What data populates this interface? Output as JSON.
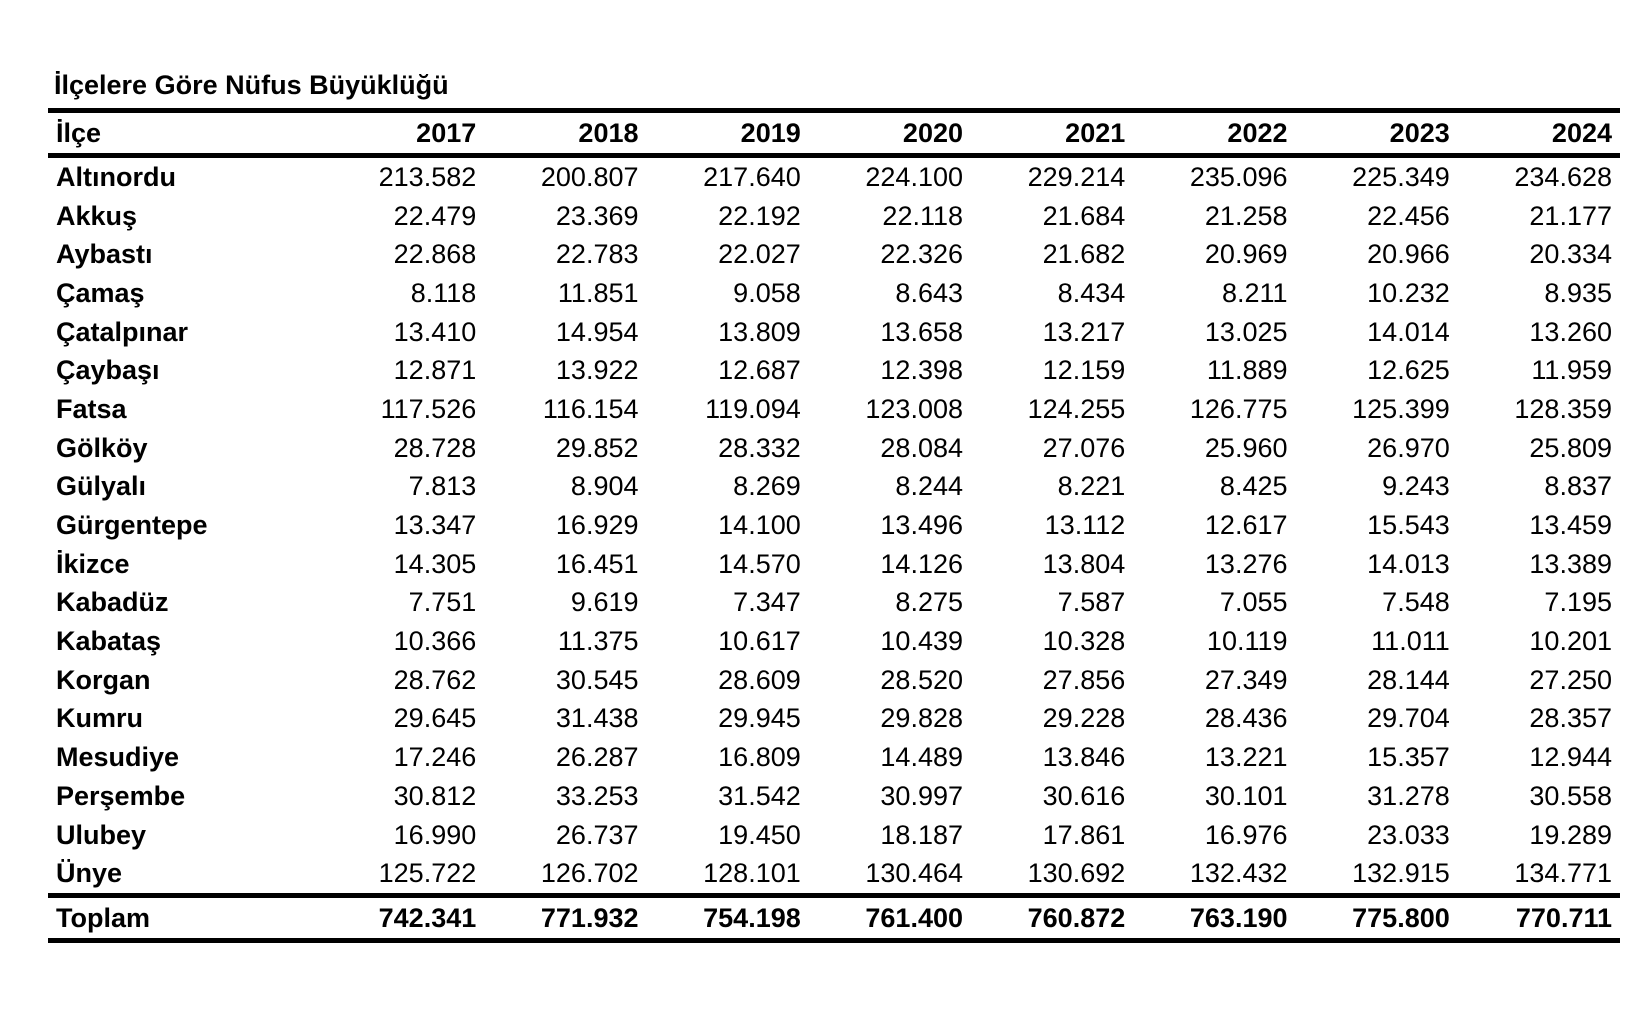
{
  "title": "İlçelere Göre Nüfus Büyüklüğü",
  "colors": {
    "background": "#ffffff",
    "text": "#000000",
    "rule_lines": "#000000"
  },
  "table": {
    "header": {
      "district": "İlçe",
      "years": [
        "2017",
        "2018",
        "2019",
        "2020",
        "2021",
        "2022",
        "2023",
        "2024"
      ]
    },
    "rows": [
      {
        "name": "Altınordu",
        "values": [
          "213.582",
          "200.807",
          "217.640",
          "224.100",
          "229.214",
          "235.096",
          "225.349",
          "234.628"
        ]
      },
      {
        "name": "Akkuş",
        "values": [
          "22.479",
          "23.369",
          "22.192",
          "22.118",
          "21.684",
          "21.258",
          "22.456",
          "21.177"
        ]
      },
      {
        "name": "Aybastı",
        "values": [
          "22.868",
          "22.783",
          "22.027",
          "22.326",
          "21.682",
          "20.969",
          "20.966",
          "20.334"
        ]
      },
      {
        "name": "Çamaş",
        "values": [
          "8.118",
          "11.851",
          "9.058",
          "8.643",
          "8.434",
          "8.211",
          "10.232",
          "8.935"
        ]
      },
      {
        "name": "Çatalpınar",
        "values": [
          "13.410",
          "14.954",
          "13.809",
          "13.658",
          "13.217",
          "13.025",
          "14.014",
          "13.260"
        ]
      },
      {
        "name": "Çaybaşı",
        "values": [
          "12.871",
          "13.922",
          "12.687",
          "12.398",
          "12.159",
          "11.889",
          "12.625",
          "11.959"
        ]
      },
      {
        "name": "Fatsa",
        "values": [
          "117.526",
          "116.154",
          "119.094",
          "123.008",
          "124.255",
          "126.775",
          "125.399",
          "128.359"
        ]
      },
      {
        "name": "Gölköy",
        "values": [
          "28.728",
          "29.852",
          "28.332",
          "28.084",
          "27.076",
          "25.960",
          "26.970",
          "25.809"
        ]
      },
      {
        "name": "Gülyalı",
        "values": [
          "7.813",
          "8.904",
          "8.269",
          "8.244",
          "8.221",
          "8.425",
          "9.243",
          "8.837"
        ]
      },
      {
        "name": "Gürgentepe",
        "values": [
          "13.347",
          "16.929",
          "14.100",
          "13.496",
          "13.112",
          "12.617",
          "15.543",
          "13.459"
        ]
      },
      {
        "name": "İkizce",
        "values": [
          "14.305",
          "16.451",
          "14.570",
          "14.126",
          "13.804",
          "13.276",
          "14.013",
          "13.389"
        ]
      },
      {
        "name": "Kabadüz",
        "values": [
          "7.751",
          "9.619",
          "7.347",
          "8.275",
          "7.587",
          "7.055",
          "7.548",
          "7.195"
        ]
      },
      {
        "name": "Kabataş",
        "values": [
          "10.366",
          "11.375",
          "10.617",
          "10.439",
          "10.328",
          "10.119",
          "11.011",
          "10.201"
        ]
      },
      {
        "name": "Korgan",
        "values": [
          "28.762",
          "30.545",
          "28.609",
          "28.520",
          "27.856",
          "27.349",
          "28.144",
          "27.250"
        ]
      },
      {
        "name": "Kumru",
        "values": [
          "29.645",
          "31.438",
          "29.945",
          "29.828",
          "29.228",
          "28.436",
          "29.704",
          "28.357"
        ]
      },
      {
        "name": "Mesudiye",
        "values": [
          "17.246",
          "26.287",
          "16.809",
          "14.489",
          "13.846",
          "13.221",
          "15.357",
          "12.944"
        ]
      },
      {
        "name": "Perşembe",
        "values": [
          "30.812",
          "33.253",
          "31.542",
          "30.997",
          "30.616",
          "30.101",
          "31.278",
          "30.558"
        ]
      },
      {
        "name": "Ulubey",
        "values": [
          "16.990",
          "26.737",
          "19.450",
          "18.187",
          "17.861",
          "16.976",
          "23.033",
          "19.289"
        ]
      },
      {
        "name": "Ünye",
        "values": [
          "125.722",
          "126.702",
          "128.101",
          "130.464",
          "130.692",
          "132.432",
          "132.915",
          "134.771"
        ]
      }
    ],
    "total": {
      "name": "Toplam",
      "values": [
        "742.341",
        "771.932",
        "754.198",
        "761.400",
        "760.872",
        "763.190",
        "775.800",
        "770.711"
      ]
    }
  },
  "chart_data": {
    "type": "table",
    "title": "İlçelere Göre Nüfus Büyüklüğü",
    "columns": [
      "İlçe",
      "2017",
      "2018",
      "2019",
      "2020",
      "2021",
      "2022",
      "2023",
      "2024"
    ],
    "rows": [
      [
        "Altınordu",
        213582,
        200807,
        217640,
        224100,
        229214,
        235096,
        225349,
        234628
      ],
      [
        "Akkuş",
        22479,
        23369,
        22192,
        22118,
        21684,
        21258,
        22456,
        21177
      ],
      [
        "Aybastı",
        22868,
        22783,
        22027,
        22326,
        21682,
        20969,
        20966,
        20334
      ],
      [
        "Çamaş",
        8118,
        11851,
        9058,
        8643,
        8434,
        8211,
        10232,
        8935
      ],
      [
        "Çatalpınar",
        13410,
        14954,
        13809,
        13658,
        13217,
        13025,
        14014,
        13260
      ],
      [
        "Çaybaşı",
        12871,
        13922,
        12687,
        12398,
        12159,
        11889,
        12625,
        11959
      ],
      [
        "Fatsa",
        117526,
        116154,
        119094,
        123008,
        124255,
        126775,
        125399,
        128359
      ],
      [
        "Gölköy",
        28728,
        29852,
        28332,
        28084,
        27076,
        25960,
        26970,
        25809
      ],
      [
        "Gülyalı",
        7813,
        8904,
        8269,
        8244,
        8221,
        8425,
        9243,
        8837
      ],
      [
        "Gürgentepe",
        13347,
        16929,
        14100,
        13496,
        13112,
        12617,
        15543,
        13459
      ],
      [
        "İkizce",
        14305,
        16451,
        14570,
        14126,
        13804,
        13276,
        14013,
        13389
      ],
      [
        "Kabadüz",
        7751,
        9619,
        7347,
        8275,
        7587,
        7055,
        7548,
        7195
      ],
      [
        "Kabataş",
        10366,
        11375,
        10617,
        10439,
        10328,
        10119,
        11011,
        10201
      ],
      [
        "Korgan",
        28762,
        30545,
        28609,
        28520,
        27856,
        27349,
        28144,
        27250
      ],
      [
        "Kumru",
        29645,
        31438,
        29945,
        29828,
        29228,
        28436,
        29704,
        28357
      ],
      [
        "Mesudiye",
        17246,
        26287,
        16809,
        14489,
        13846,
        13221,
        15357,
        12944
      ],
      [
        "Perşembe",
        30812,
        33253,
        31542,
        30997,
        30616,
        30101,
        31278,
        30558
      ],
      [
        "Ulubey",
        16990,
        26737,
        19450,
        18187,
        17861,
        16976,
        23033,
        19289
      ],
      [
        "Ünye",
        125722,
        126702,
        128101,
        130464,
        130692,
        132432,
        132915,
        134771
      ]
    ],
    "total_row": [
      "Toplam",
      742341,
      771932,
      754198,
      761400,
      760872,
      763190,
      775800,
      770711
    ]
  }
}
